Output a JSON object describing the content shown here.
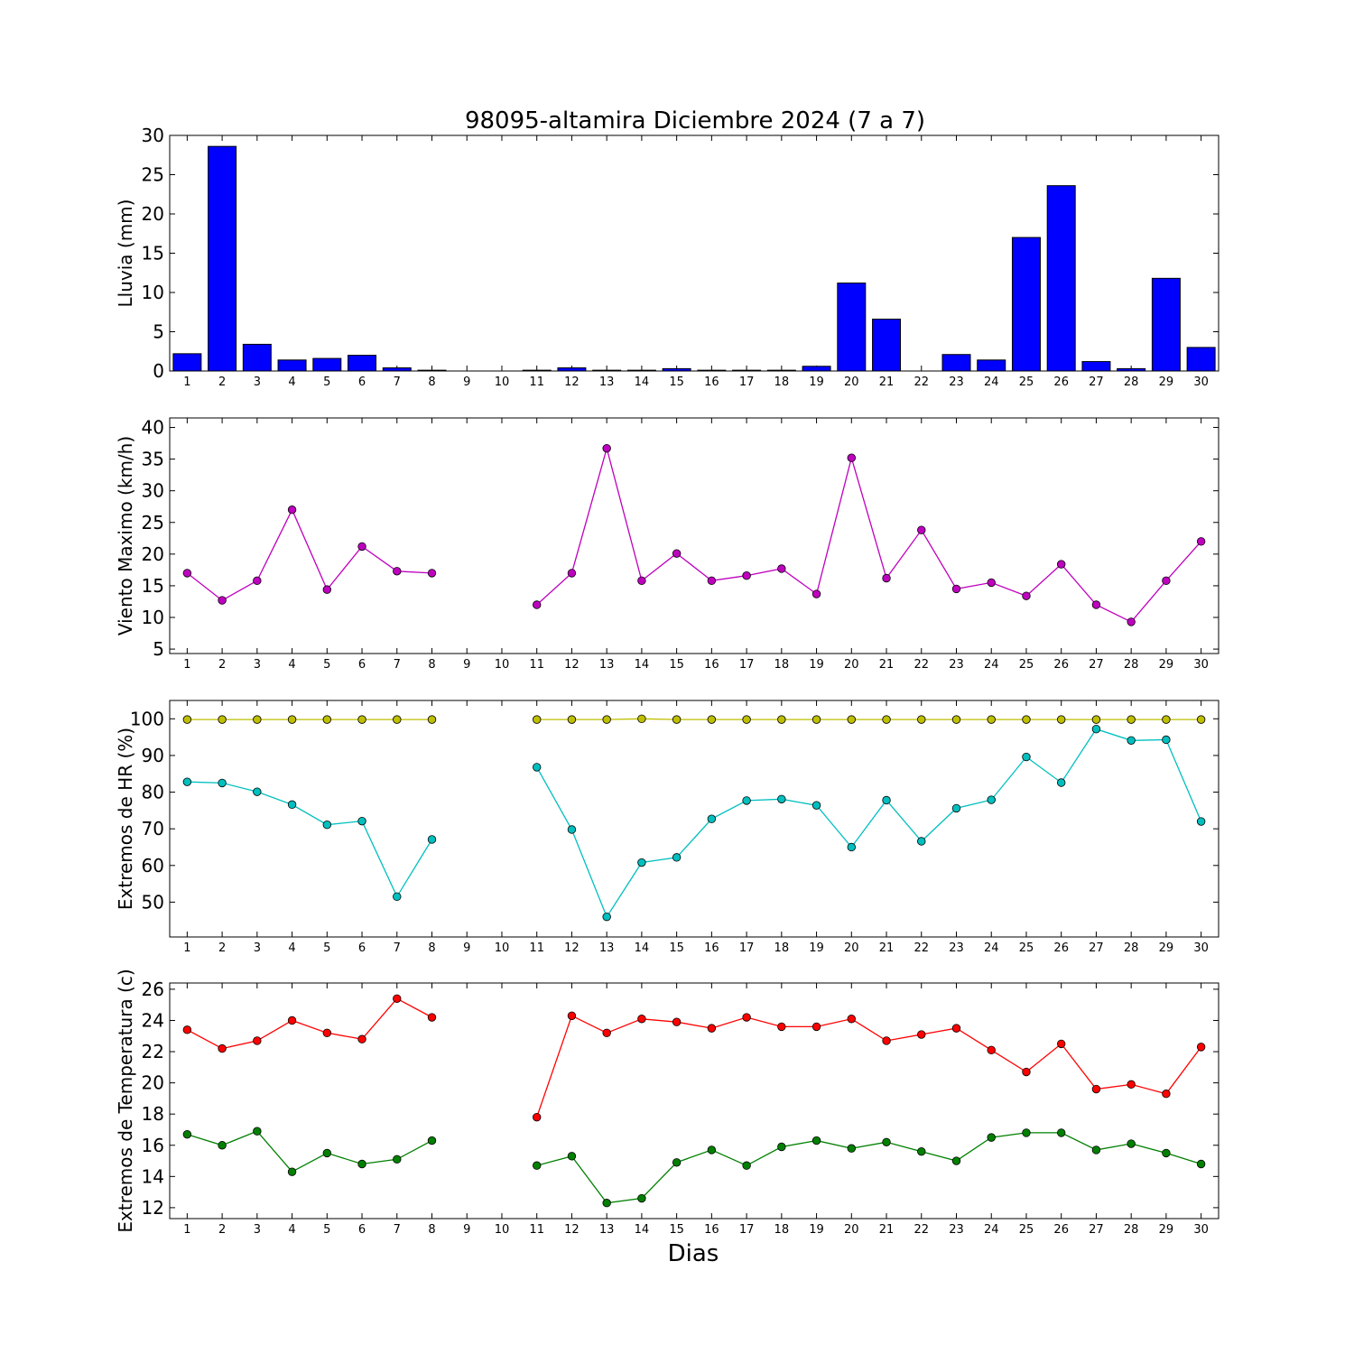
{
  "figure": {
    "title": "98095-altamira Diciembre 2024  (7 a 7)",
    "xlabel": "Dias"
  },
  "chart_data": [
    {
      "type": "bar",
      "ylabel": "Lluvia (mm)",
      "ylim": [
        0,
        30
      ],
      "yticks": [
        0,
        5,
        10,
        15,
        20,
        25,
        30
      ],
      "categories": [
        1,
        2,
        3,
        4,
        5,
        6,
        7,
        8,
        9,
        10,
        11,
        12,
        13,
        14,
        15,
        16,
        17,
        18,
        19,
        20,
        21,
        22,
        23,
        24,
        25,
        26,
        27,
        28,
        29,
        30
      ],
      "series": [
        {
          "color": "#0000ff",
          "values": [
            2.2,
            28.6,
            3.4,
            1.4,
            1.6,
            2.0,
            0.4,
            0.1,
            0.0,
            0.0,
            0.1,
            0.4,
            0.1,
            0.1,
            0.3,
            0.1,
            0.1,
            0.1,
            0.6,
            11.2,
            6.6,
            0.0,
            2.1,
            1.4,
            17.0,
            23.6,
            1.2,
            0.3,
            11.8,
            3.0
          ]
        }
      ]
    },
    {
      "type": "line",
      "ylabel": "Viento Maximo (km/h)",
      "ylim": [
        4.3,
        41.5
      ],
      "yticks": [
        5,
        10,
        15,
        20,
        25,
        30,
        35,
        40
      ],
      "x": [
        1,
        2,
        3,
        4,
        5,
        6,
        7,
        8,
        9,
        10,
        11,
        12,
        13,
        14,
        15,
        16,
        17,
        18,
        19,
        20,
        21,
        22,
        23,
        24,
        25,
        26,
        27,
        28,
        29,
        30
      ],
      "series": [
        {
          "color": "#bf00bf",
          "values": [
            17.0,
            12.7,
            15.8,
            27.0,
            14.4,
            21.2,
            17.3,
            17.0,
            null,
            null,
            12.0,
            17.0,
            36.7,
            15.8,
            20.1,
            15.8,
            16.6,
            17.7,
            13.7,
            35.2,
            16.2,
            23.8,
            14.5,
            15.5,
            13.4,
            18.4,
            12.0,
            9.3,
            15.8,
            22.0
          ]
        }
      ]
    },
    {
      "type": "line",
      "ylabel": "Extremos de HR (%)",
      "ylim": [
        40.5,
        105
      ],
      "yticks": [
        50,
        60,
        70,
        80,
        90,
        100
      ],
      "x": [
        1,
        2,
        3,
        4,
        5,
        6,
        7,
        8,
        9,
        10,
        11,
        12,
        13,
        14,
        15,
        16,
        17,
        18,
        19,
        20,
        21,
        22,
        23,
        24,
        25,
        26,
        27,
        28,
        29,
        30
      ],
      "series": [
        {
          "color": "#bfbf00",
          "values": [
            99.8,
            99.8,
            99.8,
            99.8,
            99.8,
            99.8,
            99.8,
            99.8,
            null,
            null,
            99.8,
            99.8,
            99.8,
            100.0,
            99.8,
            99.8,
            99.8,
            99.8,
            99.8,
            99.8,
            99.8,
            99.8,
            99.8,
            99.8,
            99.8,
            99.8,
            99.8,
            99.8,
            99.8,
            99.8
          ]
        },
        {
          "color": "#00bfbf",
          "values": [
            82.8,
            82.5,
            80.1,
            76.6,
            71.1,
            72.1,
            51.5,
            67.1,
            null,
            null,
            86.8,
            69.8,
            46.0,
            60.8,
            62.2,
            72.7,
            77.7,
            78.1,
            76.4,
            65.0,
            77.8,
            66.6,
            75.6,
            77.9,
            89.6,
            82.6,
            97.2,
            94.1,
            94.3,
            72.0
          ]
        }
      ]
    },
    {
      "type": "line",
      "ylabel": "Extremos de Temperatura (c)",
      "ylim": [
        11.3,
        26.4
      ],
      "yticks": [
        12,
        14,
        16,
        18,
        20,
        22,
        24,
        26
      ],
      "x": [
        1,
        2,
        3,
        4,
        5,
        6,
        7,
        8,
        9,
        10,
        11,
        12,
        13,
        14,
        15,
        16,
        17,
        18,
        19,
        20,
        21,
        22,
        23,
        24,
        25,
        26,
        27,
        28,
        29,
        30
      ],
      "series": [
        {
          "color": "#ff0000",
          "values": [
            23.4,
            22.2,
            22.7,
            24.0,
            23.2,
            22.8,
            25.4,
            24.2,
            null,
            null,
            17.8,
            24.3,
            23.2,
            24.1,
            23.9,
            23.5,
            24.2,
            23.6,
            23.6,
            24.1,
            22.7,
            23.1,
            23.5,
            22.1,
            20.7,
            22.5,
            19.6,
            19.9,
            19.3,
            22.3
          ]
        },
        {
          "color": "#008000",
          "values": [
            16.7,
            16.0,
            16.9,
            14.3,
            15.5,
            14.8,
            15.1,
            16.3,
            null,
            null,
            14.7,
            15.3,
            12.3,
            12.6,
            14.9,
            15.7,
            14.7,
            15.9,
            16.3,
            15.8,
            16.2,
            15.6,
            15.0,
            16.5,
            16.8,
            16.8,
            15.7,
            16.1,
            15.5,
            14.8
          ]
        }
      ]
    }
  ]
}
